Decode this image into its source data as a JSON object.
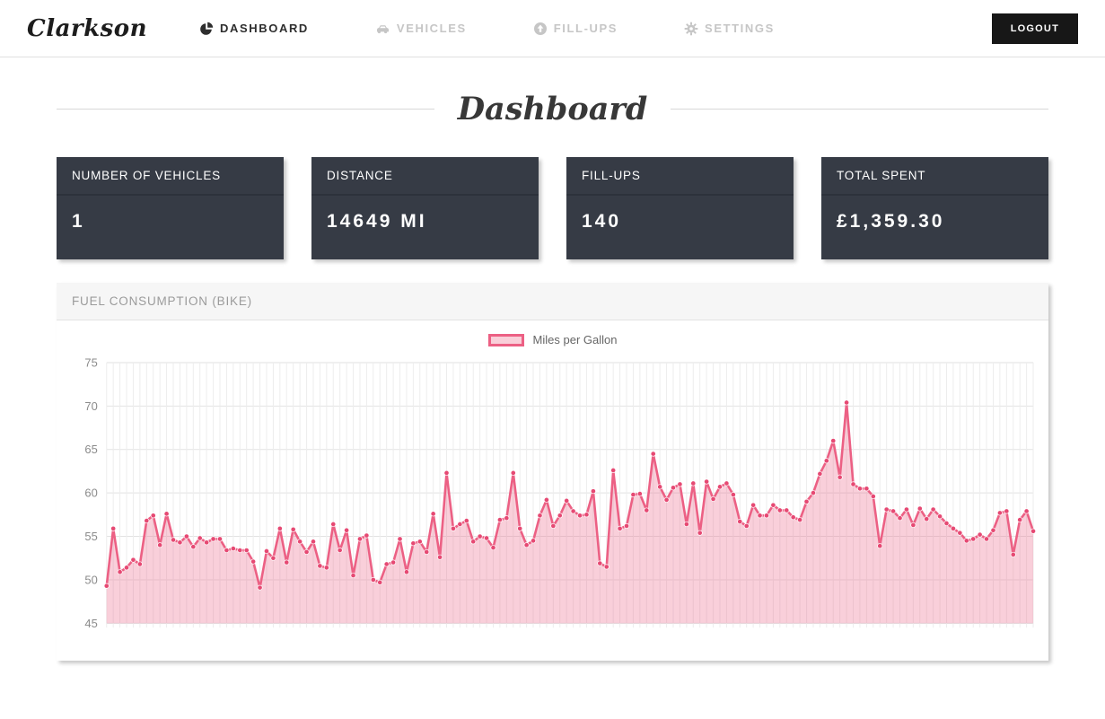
{
  "brand": "Clarkson",
  "nav": {
    "items": [
      {
        "label": "DASHBOARD",
        "icon": "pie-chart-icon",
        "active": true
      },
      {
        "label": "VEHICLES",
        "icon": "car-icon",
        "active": false
      },
      {
        "label": "FILL-UPS",
        "icon": "arrow-up-circle-icon",
        "active": false
      },
      {
        "label": "SETTINGS",
        "icon": "gear-icon",
        "active": false
      }
    ],
    "logout_label": "LOGOUT"
  },
  "page": {
    "title": "Dashboard"
  },
  "stats": [
    {
      "label": "NUMBER OF VEHICLES",
      "value": "1"
    },
    {
      "label": "DISTANCE",
      "value": "14649 MI"
    },
    {
      "label": "FILL-UPS",
      "value": "140"
    },
    {
      "label": "TOTAL SPENT",
      "value": "£1,359.30"
    }
  ],
  "panel": {
    "title": "FUEL CONSUMPTION (BIKE)"
  },
  "chart_data": {
    "type": "line",
    "title": "",
    "xlabel": "",
    "ylabel": "",
    "ylim": [
      45,
      75
    ],
    "yticks": [
      75,
      70,
      65,
      60,
      55,
      50,
      45
    ],
    "x_count": 140,
    "x_tick_labels_visible": false,
    "grid": true,
    "legend_position": "top-center",
    "legend_label": "Miles per Gallon",
    "colors": {
      "line": "#ec6084",
      "point": "#e64973",
      "fill": "rgba(236,96,132,0.30)",
      "grid_h": "#e2e2e2",
      "grid_v": "#ededed",
      "tick_text": "#8b8b8b"
    },
    "series": [
      {
        "name": "Miles per Gallon",
        "values": [
          49.3,
          55.9,
          50.9,
          51.4,
          52.3,
          51.8,
          56.8,
          57.4,
          54.0,
          57.6,
          54.6,
          54.3,
          55.0,
          53.8,
          54.8,
          54.3,
          54.7,
          54.7,
          53.4,
          53.6,
          53.4,
          53.4,
          52.1,
          49.1,
          53.3,
          52.5,
          55.9,
          52.0,
          55.8,
          54.4,
          53.2,
          54.4,
          51.6,
          51.4,
          56.4,
          53.4,
          55.7,
          50.5,
          54.7,
          55.1,
          50.0,
          49.7,
          51.8,
          52.0,
          54.7,
          50.9,
          54.2,
          54.4,
          53.2,
          57.6,
          52.6,
          62.3,
          55.9,
          56.4,
          56.8,
          54.4,
          55.0,
          54.8,
          53.7,
          56.9,
          57.1,
          62.3,
          55.9,
          54.0,
          54.5,
          57.4,
          59.2,
          56.2,
          57.4,
          59.1,
          57.9,
          57.4,
          57.5,
          60.2,
          51.9,
          51.5,
          62.6,
          55.9,
          56.2,
          59.8,
          59.9,
          58.0,
          64.5,
          60.7,
          59.2,
          60.6,
          61.0,
          56.4,
          61.1,
          55.4,
          61.3,
          59.3,
          60.7,
          61.1,
          59.8,
          56.7,
          56.2,
          58.6,
          57.4,
          57.4,
          58.6,
          58.0,
          58.0,
          57.2,
          56.9,
          59.0,
          60.0,
          62.2,
          63.7,
          66.0,
          61.8,
          70.4,
          61.0,
          60.5,
          60.5,
          59.6,
          53.9,
          58.1,
          57.9,
          57.1,
          58.1,
          56.3,
          58.2,
          57.0,
          58.1,
          57.3,
          56.5,
          55.9,
          55.4,
          54.5,
          54.7,
          55.2,
          54.7,
          55.7,
          57.7,
          57.9,
          52.9,
          56.9,
          57.9,
          55.6
        ]
      }
    ]
  }
}
